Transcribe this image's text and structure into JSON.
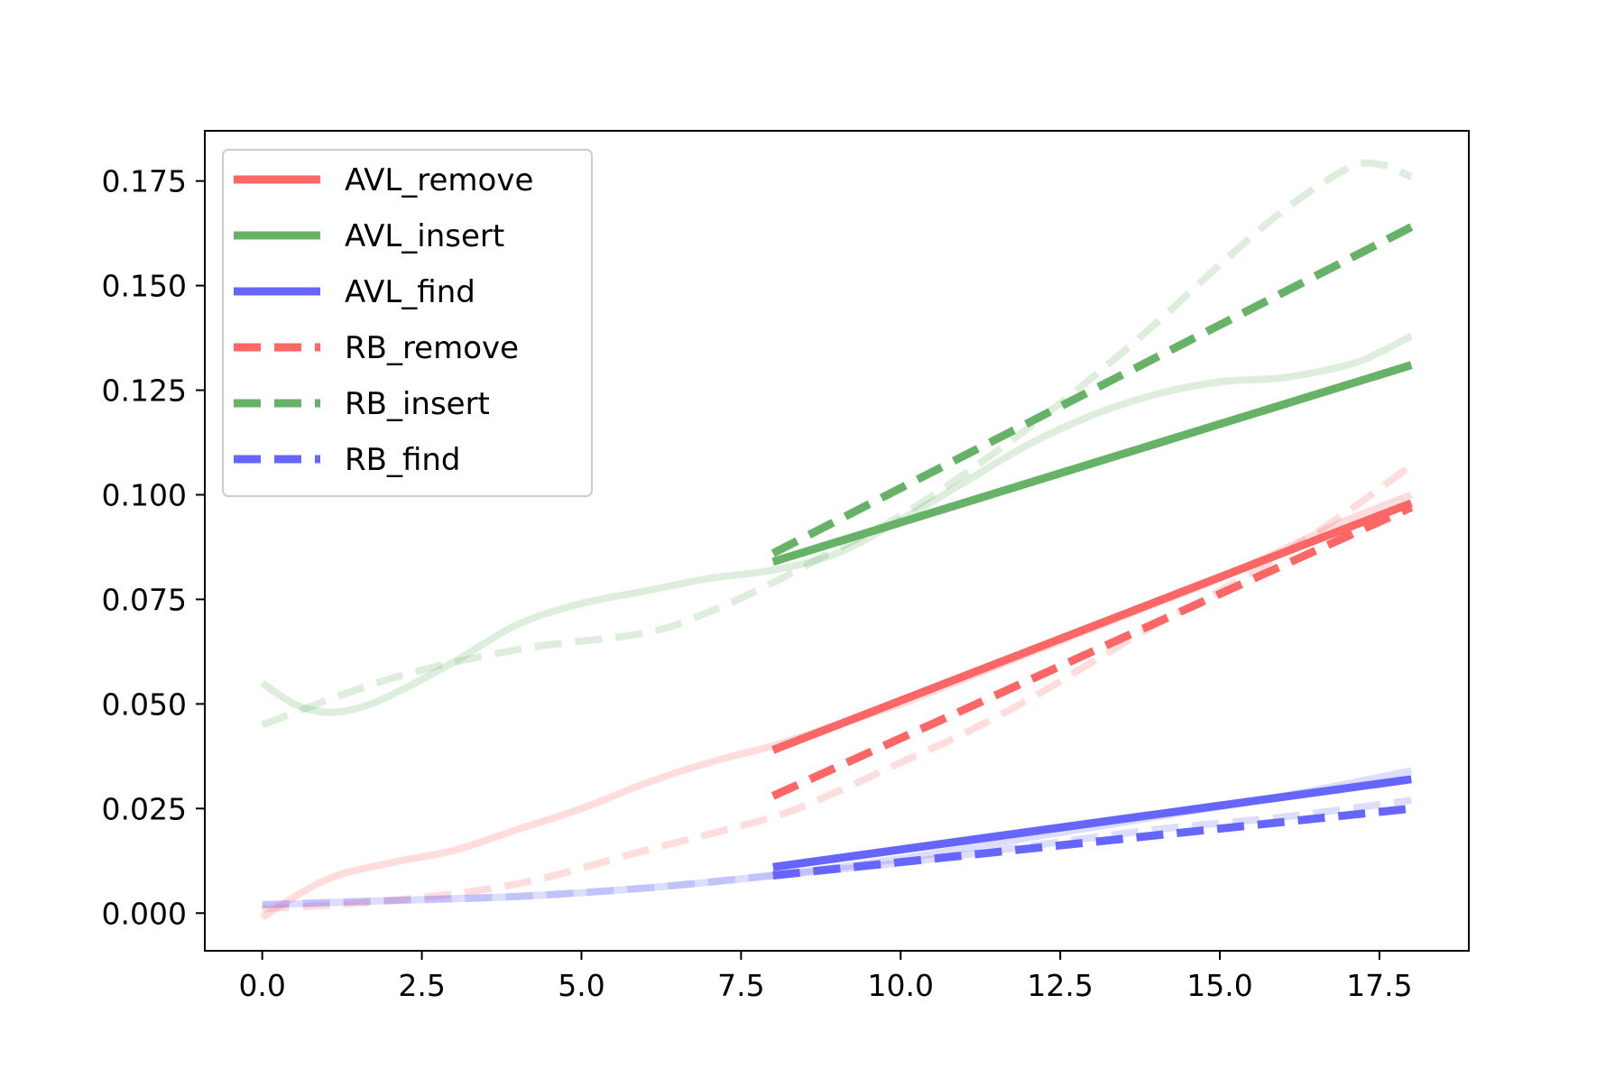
{
  "chart_data": {
    "type": "line",
    "title": "",
    "xlabel": "",
    "ylabel": "",
    "xlim": [
      -0.9,
      18.9
    ],
    "ylim": [
      -0.009,
      0.187
    ],
    "xticks": [
      {
        "value": 0.0,
        "label": "0.0"
      },
      {
        "value": 2.5,
        "label": "2.5"
      },
      {
        "value": 5.0,
        "label": "5.0"
      },
      {
        "value": 7.5,
        "label": "7.5"
      },
      {
        "value": 10.0,
        "label": "10.0"
      },
      {
        "value": 12.5,
        "label": "12.5"
      },
      {
        "value": 15.0,
        "label": "15.0"
      },
      {
        "value": 17.5,
        "label": "17.5"
      }
    ],
    "yticks": [
      {
        "value": 0.0,
        "label": "0.000"
      },
      {
        "value": 0.025,
        "label": "0.025"
      },
      {
        "value": 0.05,
        "label": "0.050"
      },
      {
        "value": 0.075,
        "label": "0.075"
      },
      {
        "value": 0.1,
        "label": "0.100"
      },
      {
        "value": 0.125,
        "label": "0.125"
      },
      {
        "value": 0.15,
        "label": "0.150"
      },
      {
        "value": 0.175,
        "label": "0.175"
      }
    ],
    "grid": false,
    "legend_position": "top-left",
    "series": [
      {
        "name": "AVL_remove",
        "color": "#ff6666",
        "dash": false,
        "x": [
          8,
          18
        ],
        "y": [
          0.039,
          0.098
        ],
        "faint": {
          "x": [
            0,
            1,
            2,
            3,
            4,
            5,
            6,
            7,
            8,
            9,
            10,
            11,
            12,
            13,
            14,
            15,
            16,
            17,
            18
          ],
          "y": [
            -0.001,
            0.008,
            0.012,
            0.015,
            0.02,
            0.025,
            0.031,
            0.036,
            0.04,
            0.045,
            0.05,
            0.056,
            0.062,
            0.068,
            0.074,
            0.08,
            0.087,
            0.094,
            0.1
          ]
        }
      },
      {
        "name": "AVL_insert",
        "color": "#66b266",
        "dash": false,
        "x": [
          8,
          18
        ],
        "y": [
          0.084,
          0.131
        ],
        "faint": {
          "x": [
            0,
            0.5,
            1,
            1.5,
            2,
            3,
            4,
            5,
            6,
            7,
            8,
            9,
            10,
            11,
            12,
            13,
            14,
            15,
            16,
            17,
            17.5,
            18
          ],
          "y": [
            0.055,
            0.05,
            0.048,
            0.049,
            0.052,
            0.06,
            0.069,
            0.074,
            0.077,
            0.08,
            0.082,
            0.086,
            0.094,
            0.103,
            0.112,
            0.119,
            0.124,
            0.127,
            0.128,
            0.131,
            0.134,
            0.138
          ]
        }
      },
      {
        "name": "AVL_find",
        "color": "#6666ff",
        "dash": false,
        "x": [
          8,
          18
        ],
        "y": [
          0.011,
          0.032
        ],
        "faint": {
          "x": [
            0,
            2,
            4,
            6,
            8,
            10,
            12,
            14,
            16,
            18
          ],
          "y": [
            0.002,
            0.003,
            0.004,
            0.006,
            0.009,
            0.013,
            0.018,
            0.023,
            0.028,
            0.034
          ]
        }
      },
      {
        "name": "RB_remove",
        "color": "#ff6666",
        "dash": true,
        "x": [
          8,
          18
        ],
        "y": [
          0.028,
          0.097
        ],
        "faint": {
          "x": [
            0,
            2,
            4,
            6,
            8,
            9,
            10,
            11,
            12,
            13,
            14,
            15,
            16,
            17,
            18
          ],
          "y": [
            0.001,
            0.003,
            0.007,
            0.015,
            0.023,
            0.029,
            0.036,
            0.043,
            0.051,
            0.06,
            0.069,
            0.077,
            0.086,
            0.096,
            0.107
          ]
        }
      },
      {
        "name": "RB_insert",
        "color": "#66b266",
        "dash": true,
        "x": [
          8,
          18
        ],
        "y": [
          0.086,
          0.164
        ],
        "faint": {
          "x": [
            0,
            2,
            4,
            6,
            7,
            8,
            9,
            10,
            11,
            12,
            13,
            14,
            15,
            16,
            17,
            17.5,
            18
          ],
          "y": [
            0.045,
            0.056,
            0.063,
            0.067,
            0.072,
            0.079,
            0.087,
            0.095,
            0.105,
            0.116,
            0.128,
            0.141,
            0.155,
            0.168,
            0.178,
            0.179,
            0.176
          ]
        }
      },
      {
        "name": "RB_find",
        "color": "#6666ff",
        "dash": true,
        "x": [
          8,
          18
        ],
        "y": [
          0.009,
          0.025
        ],
        "faint": {
          "x": [
            0,
            2,
            4,
            6,
            8,
            10,
            12,
            14,
            16,
            18
          ],
          "y": [
            0.002,
            0.003,
            0.004,
            0.006,
            0.009,
            0.012,
            0.016,
            0.02,
            0.023,
            0.027
          ]
        }
      }
    ]
  }
}
